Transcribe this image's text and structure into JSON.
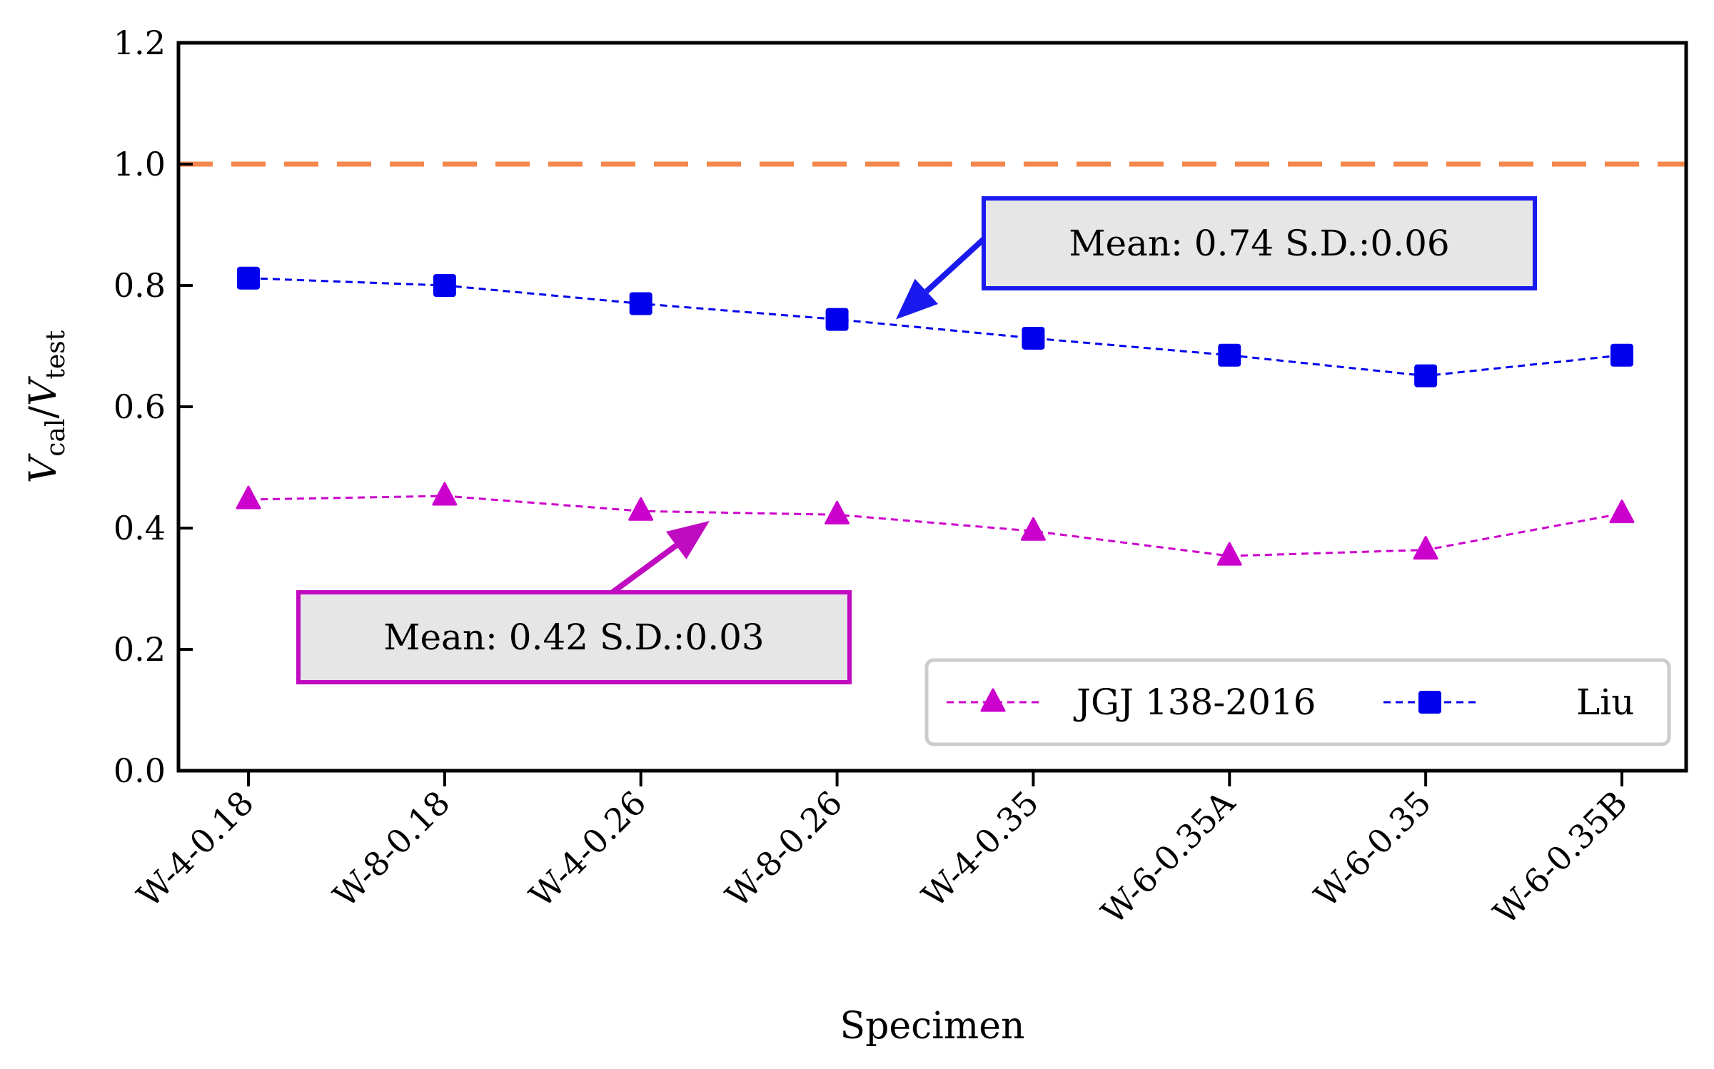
{
  "chart_data": {
    "type": "line",
    "xlabel": "Specimen",
    "ylabel": {
      "base1": "V",
      "sub1": "cal",
      "slash": "/",
      "base2": "V",
      "sub2": "test"
    },
    "ylim": [
      0,
      1.2
    ],
    "yticks": [
      "0.0",
      "0.2",
      "0.4",
      "0.6",
      "0.8",
      "1.0",
      "1.2"
    ],
    "categories": [
      "W-4-0.18",
      "W-8-0.18",
      "W-4-0.26",
      "W-8-0.26",
      "W-4-0.35",
      "W-6-0.35A",
      "W-6-0.35",
      "W-6-0.35B"
    ],
    "reference_line": {
      "y": 1.0,
      "color": "#f4874b",
      "style": "dashed"
    },
    "series": [
      {
        "name": "JGJ 138-2016",
        "marker": "triangle",
        "color": "#cc00cc",
        "values": [
          0.447,
          0.453,
          0.428,
          0.422,
          0.395,
          0.354,
          0.364,
          0.424
        ]
      },
      {
        "name": "Liu",
        "marker": "square",
        "color": "#0000ee",
        "values": [
          0.812,
          0.8,
          0.77,
          0.744,
          0.713,
          0.685,
          0.651,
          0.685
        ]
      }
    ],
    "annotations": [
      {
        "text": "Mean: 0.74    S.D.:0.06",
        "color": "#1a1aee",
        "series": "Liu"
      },
      {
        "text": "Mean: 0.42    S.D.:0.03",
        "color": "#c00cc0",
        "series": "JGJ 138-2016"
      }
    ],
    "legend": {
      "position": "bottom-right",
      "entries": [
        "JGJ 138-2016",
        "Liu"
      ]
    },
    "grid": false
  }
}
